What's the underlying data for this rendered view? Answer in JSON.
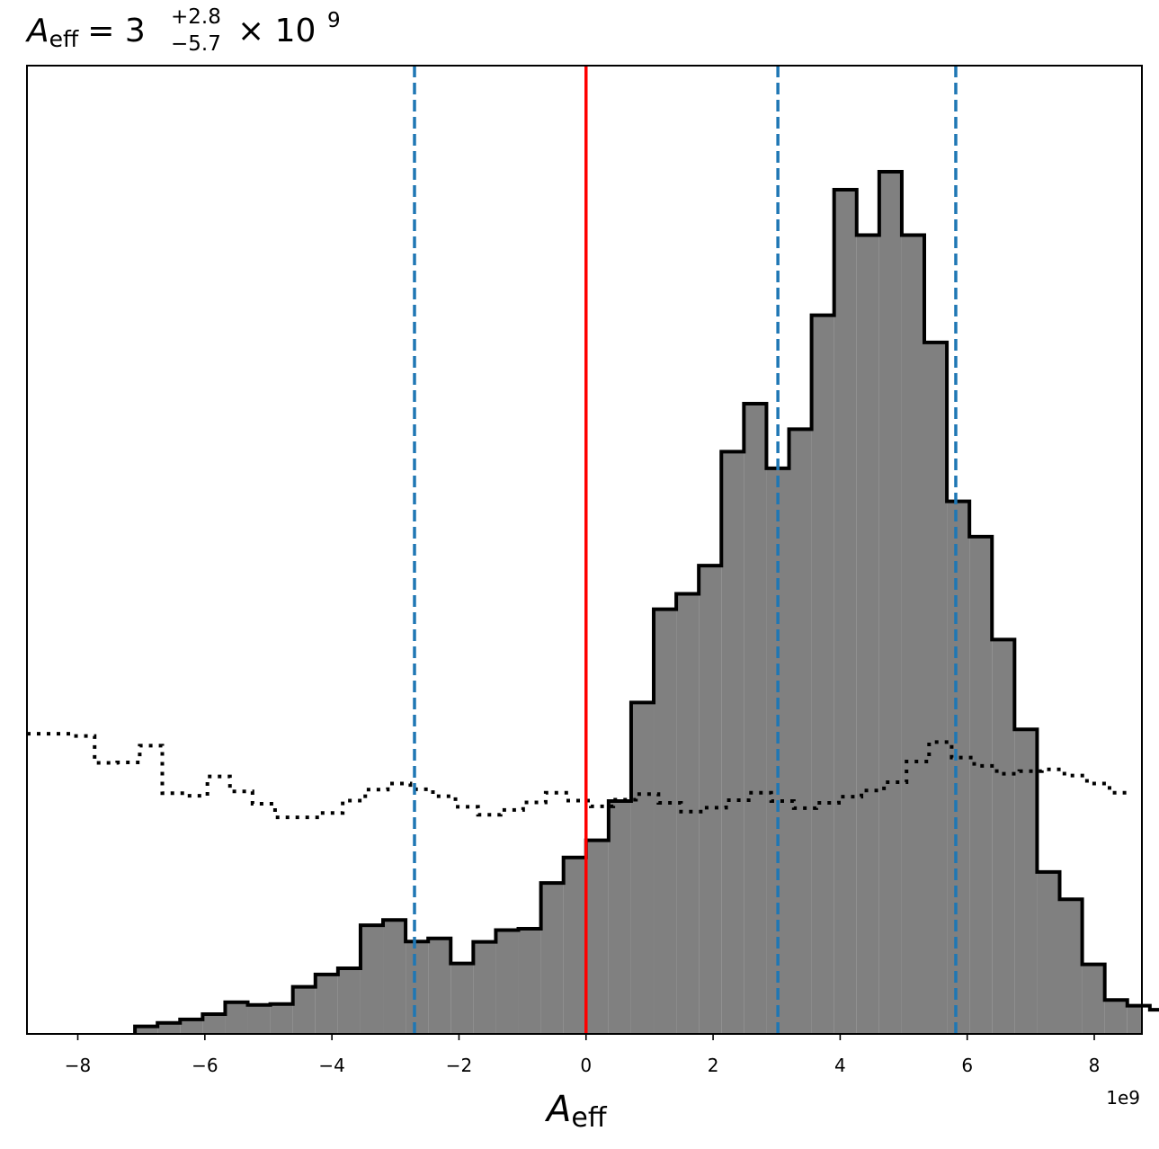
{
  "chart_data": {
    "type": "histogram",
    "title": {
      "symbol": "A",
      "subscript": "eff",
      "equals": "= 3",
      "upper_error": "+2.8",
      "lower_error": "−5.7",
      "times": "× 10",
      "exponent": "9"
    },
    "xlabel": {
      "symbol": "A",
      "subscript": "eff"
    },
    "x_offset_label": "1e9",
    "x_scale": 1000000000,
    "xlim": [
      -8.8,
      8.75
    ],
    "ylim": [
      0,
      2.2
    ],
    "grid": false,
    "x_ticks": [
      {
        "value": -8,
        "label": "−8"
      },
      {
        "value": -6,
        "label": "−6"
      },
      {
        "value": -4,
        "label": "−4"
      },
      {
        "value": -2,
        "label": "−2"
      },
      {
        "value": 0,
        "label": "0"
      },
      {
        "value": 2,
        "label": "2"
      },
      {
        "value": 4,
        "label": "4"
      },
      {
        "value": 6,
        "label": "6"
      },
      {
        "value": 8,
        "label": "8"
      }
    ],
    "bin_width": 0.355,
    "posterior_histogram": {
      "style": "filled",
      "fill": "#808080",
      "edge": "#000000",
      "x_start": -7.1,
      "values": [
        0.017,
        0.025,
        0.033,
        0.045,
        0.072,
        0.066,
        0.068,
        0.107,
        0.135,
        0.149,
        0.247,
        0.259,
        0.21,
        0.217,
        0.16,
        0.209,
        0.236,
        0.239,
        0.343,
        0.401,
        0.44,
        0.529,
        0.753,
        0.965,
        1.0,
        1.064,
        1.323,
        1.432,
        1.285,
        1.374,
        1.633,
        1.918,
        1.815,
        1.959,
        1.815,
        1.571,
        1.21,
        1.13,
        0.896,
        0.692,
        0.368,
        0.306,
        0.158,
        0.077,
        0.064,
        0.055
      ]
    },
    "prior_histogram": {
      "style": "step-dotted",
      "edge": "#000000",
      "x_start": -8.8,
      "values": [
        0.682,
        0.682,
        0.677,
        0.616,
        0.617,
        0.655,
        0.547,
        0.541,
        0.585,
        0.551,
        0.523,
        0.492,
        0.492,
        0.502,
        0.53,
        0.555,
        0.569,
        0.556,
        0.54,
        0.516,
        0.498,
        0.509,
        0.526,
        0.548,
        0.53,
        0.517,
        0.532,
        0.545,
        0.525,
        0.505,
        0.514,
        0.531,
        0.548,
        0.529,
        0.513,
        0.525,
        0.539,
        0.553,
        0.572,
        0.619,
        0.663,
        0.628,
        0.609,
        0.591,
        0.597,
        0.601,
        0.587,
        0.569,
        0.548
      ]
    },
    "vertical_lines": [
      {
        "x": 0,
        "color": "#ff0000",
        "style": "solid"
      },
      {
        "x": -2.7,
        "color": "#1f77b4",
        "style": "dashed"
      },
      {
        "x": 3.02,
        "color": "#1f77b4",
        "style": "dashed"
      },
      {
        "x": 5.82,
        "color": "#1f77b4",
        "style": "dashed"
      }
    ]
  }
}
